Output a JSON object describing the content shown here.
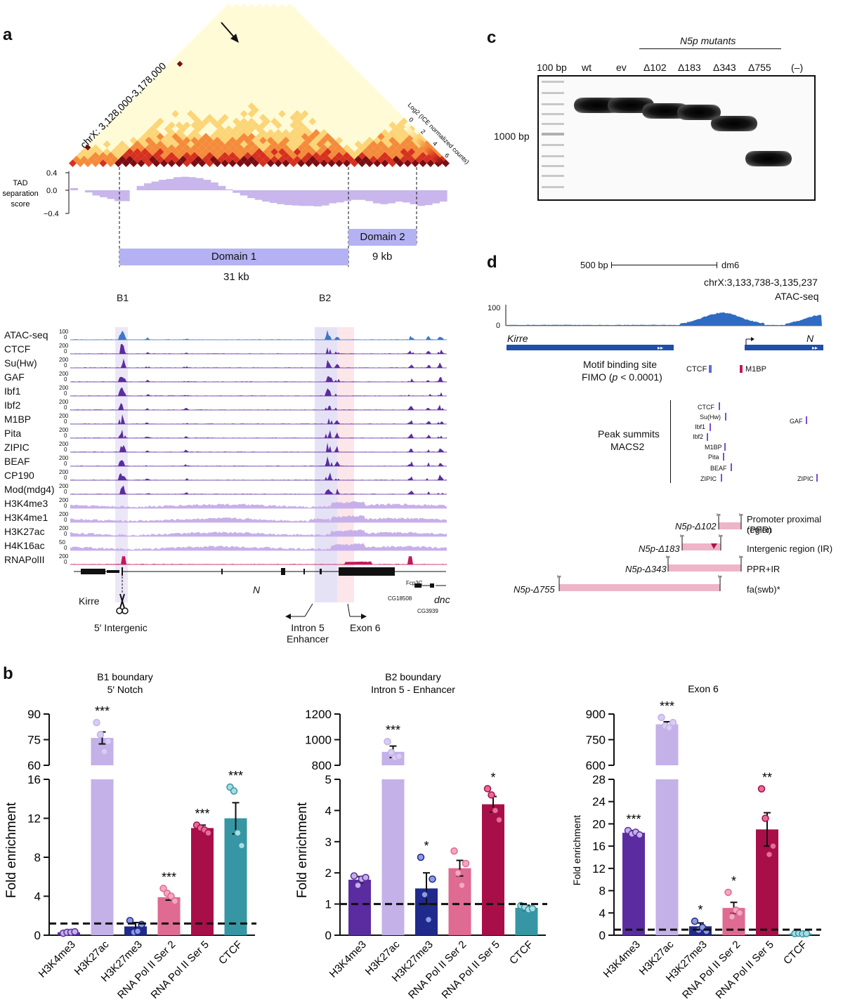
{
  "panel_labels": {
    "a": "a",
    "b": "b",
    "c": "c",
    "d": "d"
  },
  "panel_a": {
    "region": "chrX: 3,128,000-3,178,000",
    "colorbar": {
      "title": "Log2 (ICE normalized counts)",
      "ticks": [
        "0",
        "2",
        "4",
        "6"
      ],
      "colors": [
        "#fffbd6",
        "#fcd577",
        "#f48b3a",
        "#d6301f",
        "#7a0d14"
      ]
    },
    "tad": {
      "label_lines": [
        "TAD",
        "separation",
        "score"
      ],
      "ticks": [
        "0.4",
        "0.0",
        "−0.4"
      ],
      "values": [
        0.05,
        0.0,
        -0.05,
        -0.12,
        -0.16,
        -0.2,
        -0.25,
        -0.25,
        0.0,
        0.1,
        0.16,
        0.2,
        0.24,
        0.26,
        0.3,
        0.31,
        0.3,
        0.28,
        0.24,
        0.18,
        0.1,
        0.02,
        -0.06,
        -0.12,
        -0.18,
        -0.22,
        -0.26,
        -0.29,
        -0.32,
        -0.34,
        -0.35,
        -0.36,
        -0.36,
        -0.37,
        -0.35,
        -0.3,
        -0.28,
        -0.25,
        -0.22,
        -0.22,
        -0.25,
        -0.3,
        -0.32,
        -0.3,
        -0.26,
        -0.28,
        -0.32,
        -0.36,
        -0.34,
        -0.3,
        -0.26
      ]
    },
    "domain1": {
      "name": "Domain 1",
      "size": "31 kb"
    },
    "domain2": {
      "name": "Domain 2",
      "size": "9 kb"
    },
    "boundaries": [
      "B1",
      "B2"
    ],
    "tracks": [
      {
        "name": "ATAC-seq",
        "max": "100",
        "min": "0",
        "color": "#3b78c8"
      },
      {
        "name": "CTCF",
        "max": "200",
        "min": "0",
        "color": "#5a2ca0"
      },
      {
        "name": "Su(Hw)",
        "max": "200",
        "min": "0",
        "color": "#5a2ca0"
      },
      {
        "name": "GAF",
        "max": "200",
        "min": "0",
        "color": "#5a2ca0"
      },
      {
        "name": "Ibf1",
        "max": "200",
        "min": "0",
        "color": "#5a2ca0"
      },
      {
        "name": "Ibf2",
        "max": "200",
        "min": "0",
        "color": "#5a2ca0"
      },
      {
        "name": "M1BP",
        "max": "200",
        "min": "0",
        "color": "#5a2ca0"
      },
      {
        "name": "Pita",
        "max": "200",
        "min": "0",
        "color": "#5a2ca0"
      },
      {
        "name": "ZIPIC",
        "max": "200",
        "min": "0",
        "color": "#5a2ca0"
      },
      {
        "name": "BEAF",
        "max": "200",
        "min": "0",
        "color": "#5a2ca0"
      },
      {
        "name": "CP190",
        "max": "200",
        "min": "0",
        "color": "#5a2ca0"
      },
      {
        "name": "Mod(mdg4)",
        "max": "200",
        "min": "0",
        "color": "#5a2ca0"
      },
      {
        "name": "H3K4me3",
        "max": "200",
        "min": "0",
        "color": "#c7b0ea"
      },
      {
        "name": "H3K4me1",
        "max": "200",
        "min": "0",
        "color": "#c7b0ea"
      },
      {
        "name": "H3K27ac",
        "max": "200",
        "min": "0",
        "color": "#c7b0ea"
      },
      {
        "name": "H4K16ac",
        "max": "50",
        "min": "0",
        "color": "#c7b0ea"
      },
      {
        "name": "RNAPolII",
        "max": "200",
        "min": "0",
        "color": "#c2185b"
      }
    ],
    "genes": {
      "kirre": "Kirre",
      "n": "N",
      "fcp3c": "Fcp3C",
      "cg18508": "CG18508",
      "dnc": "dnc",
      "cg3939": "CG3939"
    },
    "annotations": {
      "intergenic": "5′ Intergenic",
      "enhancer_lines": [
        "Intron 5",
        "Enhancer"
      ],
      "exon": "Exon 6"
    }
  },
  "panel_b": {
    "ylabel": "Fold enrichment",
    "chart_data": [
      {
        "type": "bar",
        "title_lines": [
          "B1 boundary",
          "5′ Notch"
        ],
        "categories": [
          "H3K4me3",
          "H3K27ac",
          "H3K27me3",
          "RNA Pol II Ser 2",
          "RNA Pol II Ser 5",
          "CTCF"
        ],
        "values": [
          0.3,
          76,
          0.9,
          3.9,
          11.0,
          12.0
        ],
        "errors": [
          0.05,
          3.5,
          0.4,
          0.3,
          0.3,
          1.6
        ],
        "significance": [
          "",
          "***",
          "",
          "***",
          "***",
          "***"
        ],
        "points": [
          [
            0.2,
            0.3,
            0.3,
            0.35
          ],
          [
            85,
            78,
            68,
            74
          ],
          [
            1.5,
            0.3,
            0.4,
            1.1
          ],
          [
            4.8,
            4.3,
            4.0,
            3.5
          ],
          [
            11.3,
            11.0,
            10.8,
            10.5
          ],
          [
            15.2,
            14.8,
            10.5,
            9.2
          ]
        ],
        "break": {
          "lower_range": [
            0,
            16
          ],
          "lower_ticks": [
            0,
            4,
            8,
            12,
            16
          ],
          "upper_range": [
            60,
            90
          ],
          "upper_ticks": [
            60,
            75,
            90
          ]
        },
        "baseline": 1.2
      },
      {
        "type": "bar",
        "title_lines": [
          "B2 boundary",
          "Intron 5 - Enhancer"
        ],
        "categories": [
          "H3K4me3",
          "H3K27ac",
          "H3K27me3",
          "RNA Pol II Ser 2",
          "RNA Pol II Ser 5",
          "CTCF"
        ],
        "values": [
          1.78,
          905,
          1.5,
          2.15,
          4.2,
          0.88
        ],
        "errors": [
          0.1,
          45,
          0.5,
          0.25,
          0.25,
          0.08
        ],
        "significance": [
          "",
          "***",
          "*",
          "",
          "*",
          ""
        ],
        "points": [
          [
            1.9,
            1.6,
            1.8,
            1.85
          ],
          [
            985,
            900,
            860,
            870
          ],
          [
            2.5,
            1.3,
            0.5,
            1.8
          ],
          [
            2.7,
            2.0,
            1.6,
            2.3
          ],
          [
            4.7,
            4.5,
            4.0,
            3.7
          ],
          [
            0.95,
            0.9,
            0.82,
            0.85
          ]
        ],
        "break": {
          "lower_range": [
            0,
            5
          ],
          "lower_ticks": [
            0,
            1,
            2,
            3,
            4,
            5
          ],
          "upper_range": [
            800,
            1200
          ],
          "upper_ticks": [
            800,
            1000,
            1200
          ]
        },
        "baseline": 1.0
      },
      {
        "type": "bar",
        "title_lines": [
          "Exon 6"
        ],
        "categories": [
          "H3K4me3",
          "H3K27ac",
          "H3K27me3",
          "RNA Pol II Ser 2",
          "RNA Pol II Ser 5",
          "CTCF"
        ],
        "values": [
          18.4,
          840,
          1.6,
          4.9,
          19.0,
          0.3
        ],
        "errors": [
          0.4,
          15,
          0.6,
          1.0,
          3.0,
          0.05
        ],
        "significance": [
          "***",
          "***",
          "*",
          "*",
          "**",
          ""
        ],
        "points": [
          [
            18.8,
            18.2,
            18.5,
            18.0
          ],
          [
            880,
            830,
            820,
            850
          ],
          [
            2.5,
            0.9,
            1.4,
            0.7
          ],
          [
            7.7,
            3.3,
            4.5,
            4.0
          ],
          [
            26.3,
            21.0,
            14.5,
            16.0
          ],
          [
            0.3,
            0.35,
            0.25,
            0.3
          ]
        ],
        "break": {
          "lower_range": [
            0,
            28
          ],
          "lower_ticks": [
            0,
            4,
            8,
            12,
            16,
            20,
            24,
            28
          ],
          "upper_range": [
            600,
            900
          ],
          "upper_ticks": [
            600,
            750,
            900
          ]
        },
        "baseline": 1.0
      }
    ],
    "bar_colors": [
      "#5b2c9f",
      "#c3b1e8",
      "#1f2a8c",
      "#df6a92",
      "#a80f48",
      "#3796a4"
    ],
    "point_fill": [
      "#c3b1e8",
      "#d9ccf2",
      "#8f9ae0",
      "#f2a7c2",
      "#e46d98",
      "#a8dce4"
    ]
  },
  "panel_c": {
    "group_label": "N5p mutants",
    "lanes": [
      "100 bp",
      "wt",
      "ev",
      "Δ102",
      "Δ183",
      "Δ343",
      "Δ755",
      "(–)"
    ],
    "marker": "1000 bp"
  },
  "panel_d": {
    "scale": {
      "label": "500 bp",
      "genome": "dm6"
    },
    "region": "chrX:3,133,738-3,135,237",
    "track": {
      "name": "ATAC-seq",
      "max": "100",
      "min": "0"
    },
    "genes": {
      "kirre": "Kirre",
      "n": "N"
    },
    "motif": {
      "label1": "Motif binding site",
      "label2_pre": "FIMO (",
      "label2_p": "p",
      "label2_post": " < 0.0001)",
      "ctcf": "CTCF",
      "m1bp": "M1BP"
    },
    "peaks": {
      "label1": "Peak summits",
      "label2": "MACS2",
      "names": [
        "CTCF",
        "Su(Hw)",
        "Ibf1",
        "Ibf2",
        "M1BP",
        "Pita",
        "BEAF",
        "ZIPIC",
        "GAF",
        "ZIPIC"
      ]
    },
    "mutants": [
      {
        "name": "N5p-Δ102",
        "desc": "Promoter proximal region",
        "desc2": "(PPR)"
      },
      {
        "name": "N5p-Δ183",
        "desc": "Intergenic region (IR)"
      },
      {
        "name": "N5p-Δ343",
        "desc": "PPR+IR"
      },
      {
        "name": "N5p-Δ755",
        "desc": "fa(swb)*"
      }
    ]
  }
}
